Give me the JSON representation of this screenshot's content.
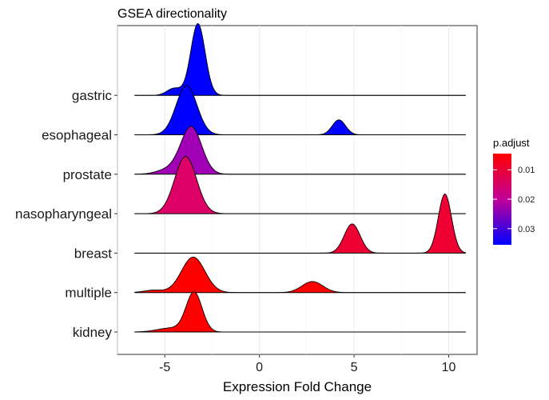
{
  "chart_data": {
    "type": "ridgeline",
    "title": "GSEA directionality",
    "xlabel": "Expression Fold Change",
    "ylabel": "",
    "xlim": [
      -7.5,
      11.5
    ],
    "x_ticks": [
      -5,
      0,
      5,
      10
    ],
    "x_tick_labels": [
      "-5",
      "0",
      "5",
      "10"
    ],
    "grid": true,
    "legend": {
      "title": "p.adjust",
      "position": "right",
      "ticks": [
        0.01,
        0.02,
        0.03
      ],
      "tick_labels": [
        "0.01",
        "0.02",
        "0.03"
      ],
      "range": [
        0.0045,
        0.0355
      ],
      "low_color": "#ff0000",
      "high_color": "#0000ff"
    },
    "series": [
      {
        "name": "kidney",
        "p_adjust": 0.005,
        "color": "#ff0000",
        "range": [
          -6.6,
          10.9
        ],
        "peaks": [
          {
            "mu": -3.45,
            "sigma": 0.42,
            "h": 1.0
          },
          {
            "mu": -4.7,
            "sigma": 0.7,
            "h": 0.1
          }
        ]
      },
      {
        "name": "multiple",
        "p_adjust": 0.005,
        "color": "#ff0000",
        "range": [
          -6.6,
          10.9
        ],
        "peaks": [
          {
            "mu": -3.5,
            "sigma": 0.62,
            "h": 0.9
          },
          {
            "mu": -5.6,
            "sigma": 0.5,
            "h": 0.06
          },
          {
            "mu": 2.8,
            "sigma": 0.55,
            "h": 0.28
          }
        ]
      },
      {
        "name": "breast",
        "p_adjust": 0.01,
        "color": "#ee0033",
        "range": [
          -6.6,
          10.9
        ],
        "peaks": [
          {
            "mu": 4.9,
            "sigma": 0.42,
            "h": 0.74
          },
          {
            "mu": 9.8,
            "sigma": 0.35,
            "h": 1.5
          }
        ]
      },
      {
        "name": "nasopharyngeal",
        "p_adjust": 0.014,
        "color": "#dd0066",
        "range": [
          -6.6,
          10.9
        ],
        "peaks": [
          {
            "mu": -3.9,
            "sigma": 0.58,
            "h": 1.45
          }
        ]
      },
      {
        "name": "prostate",
        "p_adjust": 0.026,
        "color": "#a100b6",
        "range": [
          -6.6,
          10.9
        ],
        "peaks": [
          {
            "mu": -3.6,
            "sigma": 0.55,
            "h": 1.2
          },
          {
            "mu": -4.8,
            "sigma": 0.6,
            "h": 0.12
          }
        ]
      },
      {
        "name": "esophageal",
        "p_adjust": 0.0355,
        "color": "#0000ff",
        "range": [
          -6.6,
          10.9
        ],
        "peaks": [
          {
            "mu": -3.85,
            "sigma": 0.55,
            "h": 1.25
          },
          {
            "mu": 4.2,
            "sigma": 0.35,
            "h": 0.38
          }
        ]
      },
      {
        "name": "gastric",
        "p_adjust": 0.0355,
        "color": "#0000ff",
        "range": [
          -6.6,
          10.9
        ],
        "peaks": [
          {
            "mu": -3.25,
            "sigma": 0.38,
            "h": 1.82
          },
          {
            "mu": -4.5,
            "sigma": 0.38,
            "h": 0.18
          }
        ]
      }
    ]
  }
}
